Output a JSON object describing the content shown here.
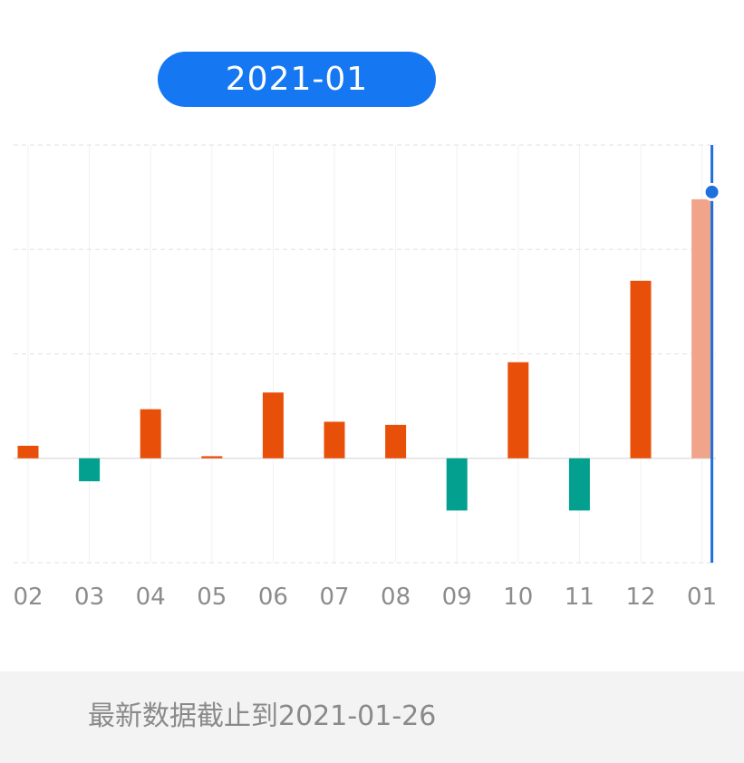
{
  "header": {
    "selected_period": "2021-01"
  },
  "chart_data": {
    "type": "bar",
    "categories": [
      "02",
      "03",
      "04",
      "05",
      "06",
      "07",
      "08",
      "09",
      "10",
      "11",
      "12",
      "01"
    ],
    "values": [
      0.12,
      -0.22,
      0.47,
      0.02,
      0.63,
      0.35,
      0.32,
      -0.5,
      0.92,
      -0.5,
      1.7,
      2.48
    ],
    "ylim": [
      -1,
      3
    ],
    "grid": true,
    "selected_index": 11,
    "colors": {
      "positive": "#e8500a",
      "negative": "#03a090",
      "selected": "#f0a58a",
      "cursor": "#1f6fdf"
    }
  },
  "footer": {
    "note": "最新数据截止到2021-01-26"
  }
}
